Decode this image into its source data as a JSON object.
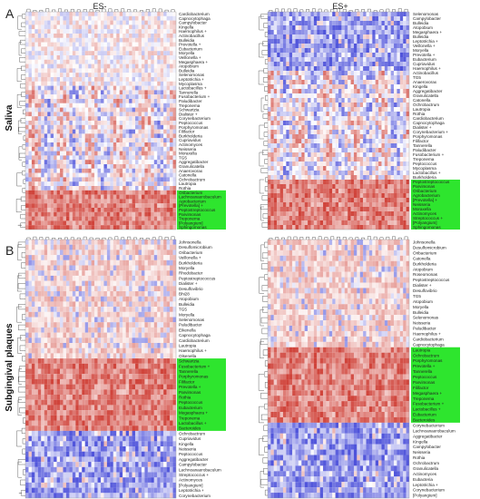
{
  "colors": {
    "low": "#3a3fd6",
    "mid": "#ffffff",
    "high": "#d0443b",
    "highlight": "#2ee52e"
  },
  "figure": {
    "side_labels": [
      "Saliva",
      "Subgingival plaques"
    ]
  },
  "chart_data": [
    {
      "type": "heatmap",
      "panel_label": "A",
      "title": "ES-",
      "seed": 11,
      "rows": [
        "Cardiobacterium",
        "Capnocytophaga",
        "Campylobacter",
        "Kingella",
        "Haemophilus +",
        "Actinobacillus",
        "Bulleidia",
        "Prevotella +",
        "Eubacterium",
        "Moryella",
        "Veillonella +",
        "Megasphaera +",
        "Atopobium",
        "Bulleidia",
        "Selenomonas",
        "Leptotrichia +",
        "Mycoplasma",
        "Lactobacillus +",
        "Tannerella",
        "Fusobacterium +",
        "Paludibacter",
        "Treponema",
        "Schwartzia",
        "Dialister +",
        "Corynebacterium",
        "Peptococcus",
        "Porphyromonas",
        "Filifactor",
        "Burkholderia",
        "Cupriavidus",
        "Actinomyces",
        "Neisseria",
        "Moraxella",
        "TG5",
        "Aggregatibacter",
        "Granulicatella",
        "Anaerovorax",
        "Catonella",
        "Ochrobactrum",
        "Lautropia",
        "Rothia",
        "Oribacterium",
        "Lachnoanaerobaculum",
        "Agrobacterium",
        "[Prevotella] +",
        "Peptostreptococcus",
        "Parvimonas",
        "Treponema",
        "[Polyangium]",
        "Sphingomonas"
      ],
      "highlighted_rows": [
        41,
        42,
        43,
        44,
        45,
        46,
        47,
        48,
        49
      ],
      "n_cols": 48,
      "color_bands": [
        [
          0,
          16,
          "neutral"
        ],
        [
          17,
          40,
          "mixed"
        ],
        [
          41,
          49,
          "warm"
        ]
      ]
    },
    {
      "type": "heatmap",
      "panel_label": "",
      "title": "ES+",
      "seed": 23,
      "rows": [
        "Selenomonas",
        "Campylobacter",
        "Bulleidia",
        "Atopobium",
        "Megasphaera +",
        "Bulleidia",
        "Leptotrichia +",
        "Veillonella +",
        "Moryella",
        "Prevotella +",
        "Eubacterium",
        "Cupriavidus",
        "Haemophilus +",
        "Actinobacillus",
        "TG5",
        "Anaerovorax",
        "Kingella",
        "Aggregatibacter",
        "Granulicatella",
        "Catonella",
        "Ochrobactrum",
        "Lautropia",
        "Rothia",
        "Cardiobacterium",
        "Capnocytophaga",
        "Dialister +",
        "Corynebacterium +",
        "Porphyromonas",
        "Filifactor",
        "Tannerella",
        "Paludibacter",
        "Fusobacterium +",
        "Treponema",
        "Peptococcus",
        "Mycoplasma",
        "Lactobacillus +",
        "Burkholderia",
        "Peptostreptococcus",
        "Parvimonas",
        "Oribacterium",
        "Agrobacterium",
        "[Prevotella] +",
        "Neisseria",
        "Moraxella",
        "Actinomyces",
        "Streptococcus +",
        "[Polyangium]",
        "Sphingomonas"
      ],
      "highlighted_rows": [
        37,
        38,
        39,
        40,
        41,
        42,
        43,
        44,
        45,
        46,
        47
      ],
      "n_cols": 46,
      "color_bands": [
        [
          0,
          12,
          "cool"
        ],
        [
          13,
          36,
          "mixed"
        ],
        [
          37,
          47,
          "warm"
        ]
      ]
    },
    {
      "type": "heatmap",
      "panel_label": "B",
      "title": "",
      "seed": 37,
      "rows": [
        "Johnsonella",
        "Desulfomicrobium",
        "Oribacterium",
        "Veillonella +",
        "Burkholderia",
        "Moryella",
        "Rhodobacter",
        "Peptostreptococcus",
        "Dialister +",
        "Desulfovibrio",
        "Bhi28",
        "Atopobium",
        "Bulleidia",
        "TG5",
        "Moryella",
        "Selenomonas",
        "Paludibacter",
        "Eikenella",
        "Capnocytophaga",
        "Cardiobacterium",
        "Lautropia",
        "Haemophilus +",
        "Olsenella",
        "Schwartzia",
        "Fusobacterium +",
        "Tannerella",
        "Porphyromonas",
        "Filifactor",
        "Prevotella +",
        "Parvimonas",
        "Rothia",
        "Peptococcus",
        "Eubacterium",
        "Megasphaera +",
        "Treponema",
        "Lactobacillus +",
        "Bacteroides",
        "Ochrobactrum",
        "Cupriavidus",
        "Kingella",
        "Neisseria",
        "Peptococcus",
        "Aggregatibacter",
        "Campylobacter",
        "Lachnoanaerobaculum",
        "Streptococcus +",
        "Actinomyces",
        "[Polyangium]",
        "Leptotrichia +",
        "Corynebacterium"
      ],
      "highlighted_rows": [
        23,
        24,
        25,
        26,
        27,
        28,
        29,
        30,
        31,
        32,
        33,
        34,
        35,
        36
      ],
      "n_cols": 48,
      "color_bands": [
        [
          0,
          22,
          "warmsoft"
        ],
        [
          23,
          36,
          "warm"
        ],
        [
          37,
          49,
          "cool"
        ]
      ]
    },
    {
      "type": "heatmap",
      "panel_label": "",
      "title": "",
      "seed": 51,
      "rows": [
        "Johnsonella",
        "Desulfomicrobium",
        "Oribacterium",
        "Catonella",
        "Burkholderia",
        "Atopobium",
        "Roseomonas",
        "Peptostreptococcus",
        "Dialister +",
        "Desulfovibrio",
        "TG5",
        "Atopobium",
        "Moryella",
        "Bulleidia",
        "Selenomonas",
        "Neisseria",
        "Paludibacter",
        "Haemophilus +",
        "Cardiobacterium",
        "Capnocytophaga",
        "Lautropia",
        "Ochrobactrum",
        "Porphyromonas",
        "Prevotella +",
        "Tannerella",
        "Peptococcus",
        "Parvimonas",
        "Filifactor",
        "Megasphaera +",
        "Treponema",
        "Fusobacterium +",
        "Lactobacillus +",
        "Eubacterium",
        "Bacteroides",
        "Corynebacterium",
        "Lachnoanaerobaculum",
        "Aggregatibacter",
        "Kingella",
        "Campylobacter",
        "Neisseria",
        "Rothia",
        "Ochrobactrum",
        "Granulicatella",
        "Actinomyces",
        "Eubacteria",
        "Leptotrichia +",
        "Corynebacterium",
        "[Polyangium]"
      ],
      "highlighted_rows": [
        20,
        21,
        22,
        23,
        24,
        25,
        26,
        27,
        28,
        29,
        30,
        31,
        32,
        33
      ],
      "n_cols": 46,
      "color_bands": [
        [
          0,
          19,
          "warmsoft"
        ],
        [
          20,
          33,
          "warm"
        ],
        [
          34,
          47,
          "cool"
        ]
      ]
    }
  ]
}
